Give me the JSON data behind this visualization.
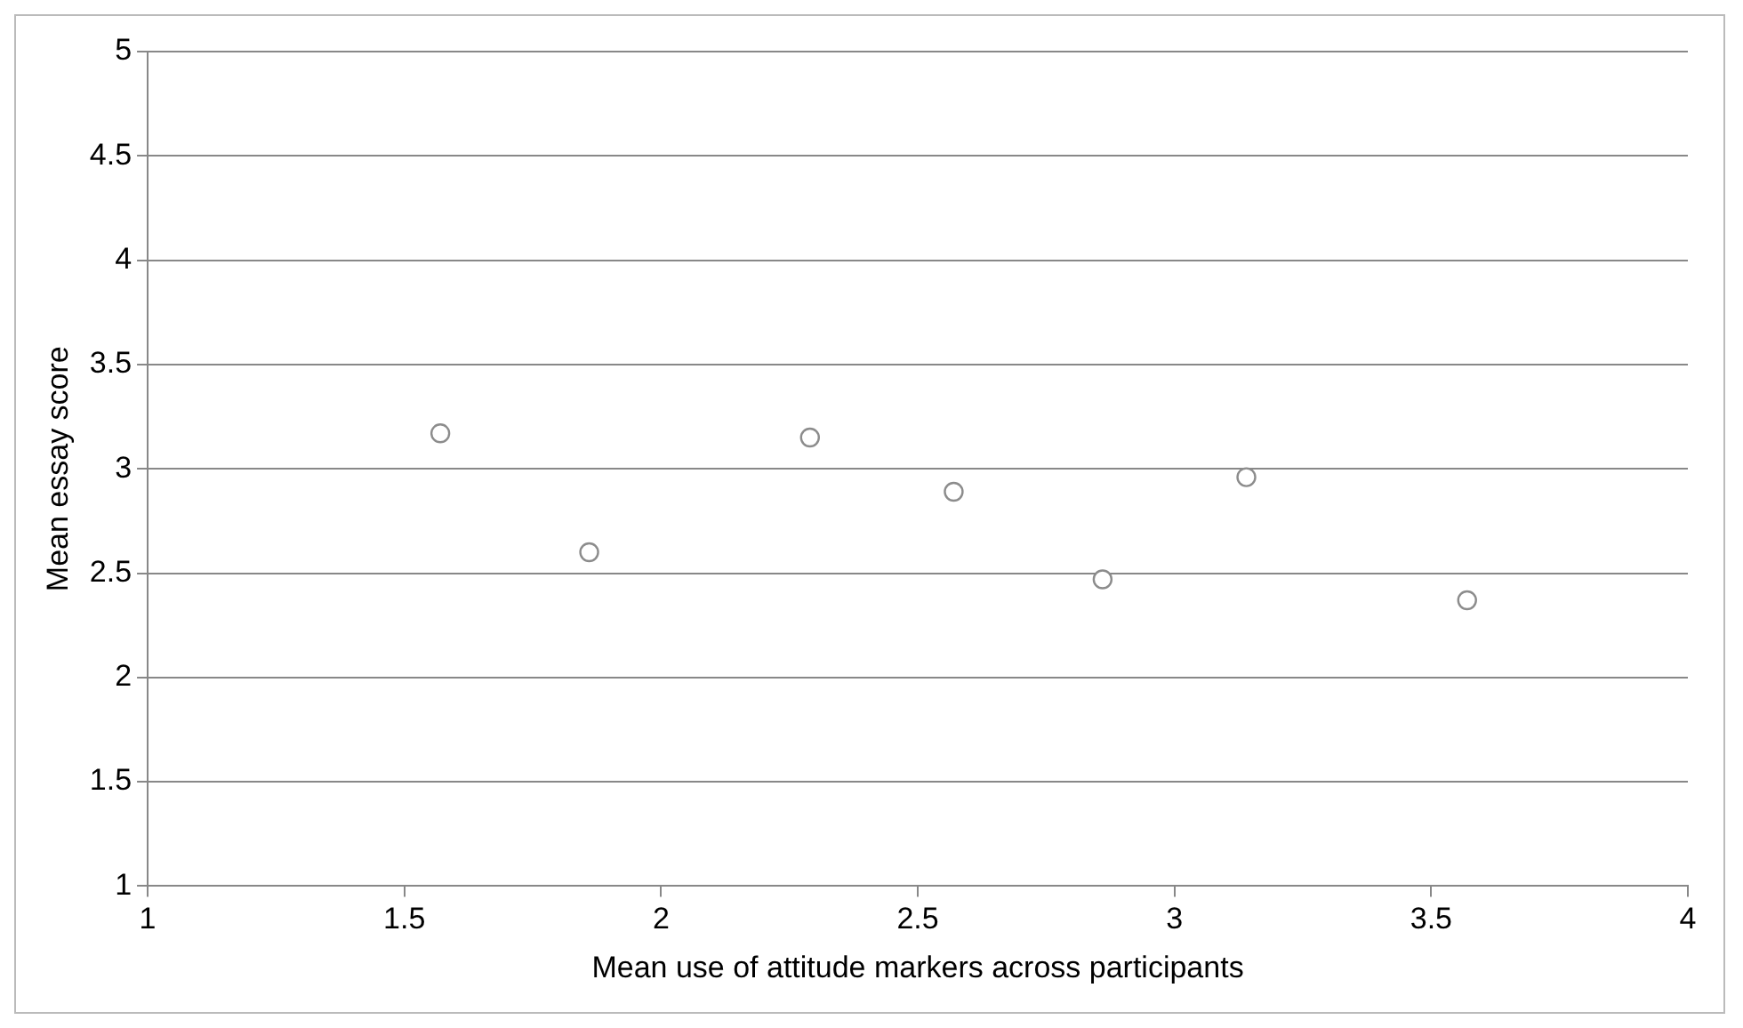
{
  "chart_data": {
    "type": "scatter",
    "xlabel": "Mean use of attitude markers across participants",
    "ylabel": "Mean essay score",
    "x": [
      1.57,
      1.86,
      2.29,
      2.57,
      2.86,
      3.14,
      3.57
    ],
    "values": [
      3.17,
      2.6,
      3.15,
      2.89,
      2.47,
      2.96,
      2.37
    ],
    "color": "#ffffff",
    "xlim": [
      1,
      4
    ],
    "xticks": [
      1,
      1.5,
      2,
      2.5,
      3,
      3.5,
      4
    ],
    "ylim": [
      1,
      5
    ],
    "yticks": [
      1,
      1.5,
      2,
      2.5,
      3,
      3.5,
      4,
      4.5,
      5
    ],
    "grid": "y",
    "legend": false,
    "marker": "circle"
  }
}
